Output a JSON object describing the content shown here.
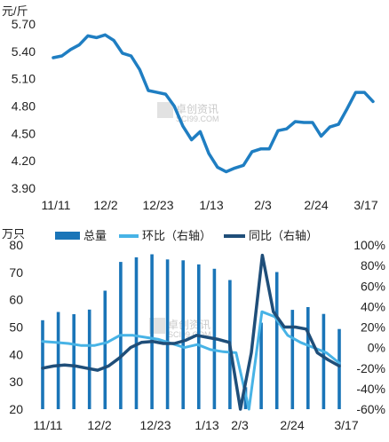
{
  "colors": {
    "price_line": "#1f7ec2",
    "bar": "#1a75b8",
    "mom_line": "#47b3e6",
    "yoy_line": "#1f4e79",
    "grid": "#cfcfcf"
  },
  "watermark": {
    "brand": "卓创资讯",
    "url": "SCI99.COM"
  },
  "chart_data": [
    {
      "type": "line",
      "unit": "元/斤",
      "x_ticks": [
        "11/11",
        "12/2",
        "12/23",
        "1/13",
        "2/3",
        "2/24",
        "3/17"
      ],
      "y_ticks": [
        "5.70",
        "5.40",
        "5.10",
        "4.80",
        "4.50",
        "4.20",
        "3.90"
      ],
      "ylim": [
        3.9,
        5.7
      ],
      "grid": false,
      "series": [
        {
          "values": [
            5.33,
            5.35,
            5.42,
            5.47,
            5.57,
            5.55,
            5.58,
            5.52,
            5.38,
            5.35,
            5.2,
            4.97,
            4.95,
            4.93,
            4.8,
            4.58,
            4.43,
            4.52,
            4.28,
            4.13,
            4.08,
            4.12,
            4.15,
            4.3,
            4.33,
            4.33,
            4.53,
            4.55,
            4.63,
            4.62,
            4.62,
            4.47,
            4.57,
            4.6,
            4.77,
            4.95,
            4.95,
            4.85
          ]
        }
      ]
    },
    {
      "type": "bar+line",
      "unit": "万只",
      "x_ticks": [
        "11/11",
        "12/2",
        "12/23",
        "1/13",
        "2/3",
        "2/24",
        "3/17"
      ],
      "y_left_ticks": [
        "80",
        "70",
        "60",
        "50",
        "40",
        "30",
        "20"
      ],
      "y_right_ticks": [
        "100%",
        "80%",
        "60%",
        "40%",
        "20%",
        "0%",
        "-20%",
        "-40%",
        "-60%"
      ],
      "ylim_left": [
        20,
        80
      ],
      "ylim_right": [
        -60,
        100
      ],
      "grid": false,
      "series": [
        {
          "name": "总量",
          "type": "bar",
          "axis": "left",
          "values": [
            52.5,
            55.5,
            54.7,
            56.4,
            63.3,
            73.8,
            75.5,
            76.6,
            74.7,
            74.4,
            72.9,
            71.3,
            67.2,
            28.0,
            51.6,
            70.1,
            56.3,
            57.3,
            54.8,
            49.3
          ]
        },
        {
          "name": "环比（右轴）",
          "type": "line",
          "axis": "right",
          "values": [
            6,
            5,
            4,
            2,
            2,
            5,
            12,
            12,
            10,
            8,
            4,
            0,
            3,
            -2,
            -4,
            -5,
            -60,
            35,
            30,
            12,
            5,
            0,
            -5,
            -15
          ]
        },
        {
          "name": "同比（右轴）",
          "type": "line",
          "axis": "right",
          "values": [
            -20,
            -18,
            -17,
            -18,
            -20,
            -22,
            -18,
            -10,
            0,
            5,
            6,
            4,
            4,
            7,
            12,
            10,
            8,
            5,
            -60,
            -5,
            90,
            35,
            20,
            20,
            18,
            -5,
            -12,
            -18
          ]
        }
      ]
    }
  ]
}
